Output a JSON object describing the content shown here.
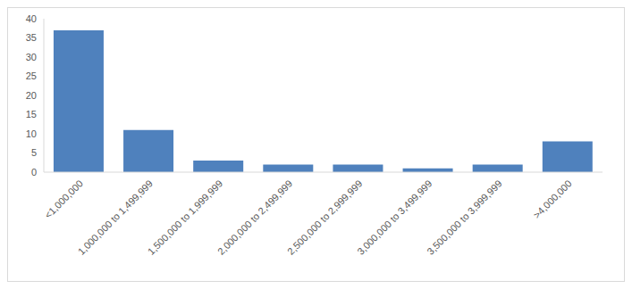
{
  "chart_data": {
    "type": "bar",
    "categories": [
      "<1,000,000",
      "1,000,000 to 1,499,999",
      "1,500,000 to 1,999,999",
      "2,000,000 to 2,499,999",
      "2,500,000 to 2,999,999",
      "3,000,000 to 3,499,999",
      "3,500,000 to 3,999,999",
      ">4,000,000"
    ],
    "values": [
      37,
      11,
      3,
      2,
      2,
      1,
      2,
      8
    ],
    "color": "#4f81bd",
    "ylim": [
      0,
      40
    ],
    "yticks": [
      0,
      5,
      10,
      15,
      20,
      25,
      30,
      35,
      40
    ],
    "grid": false
  }
}
